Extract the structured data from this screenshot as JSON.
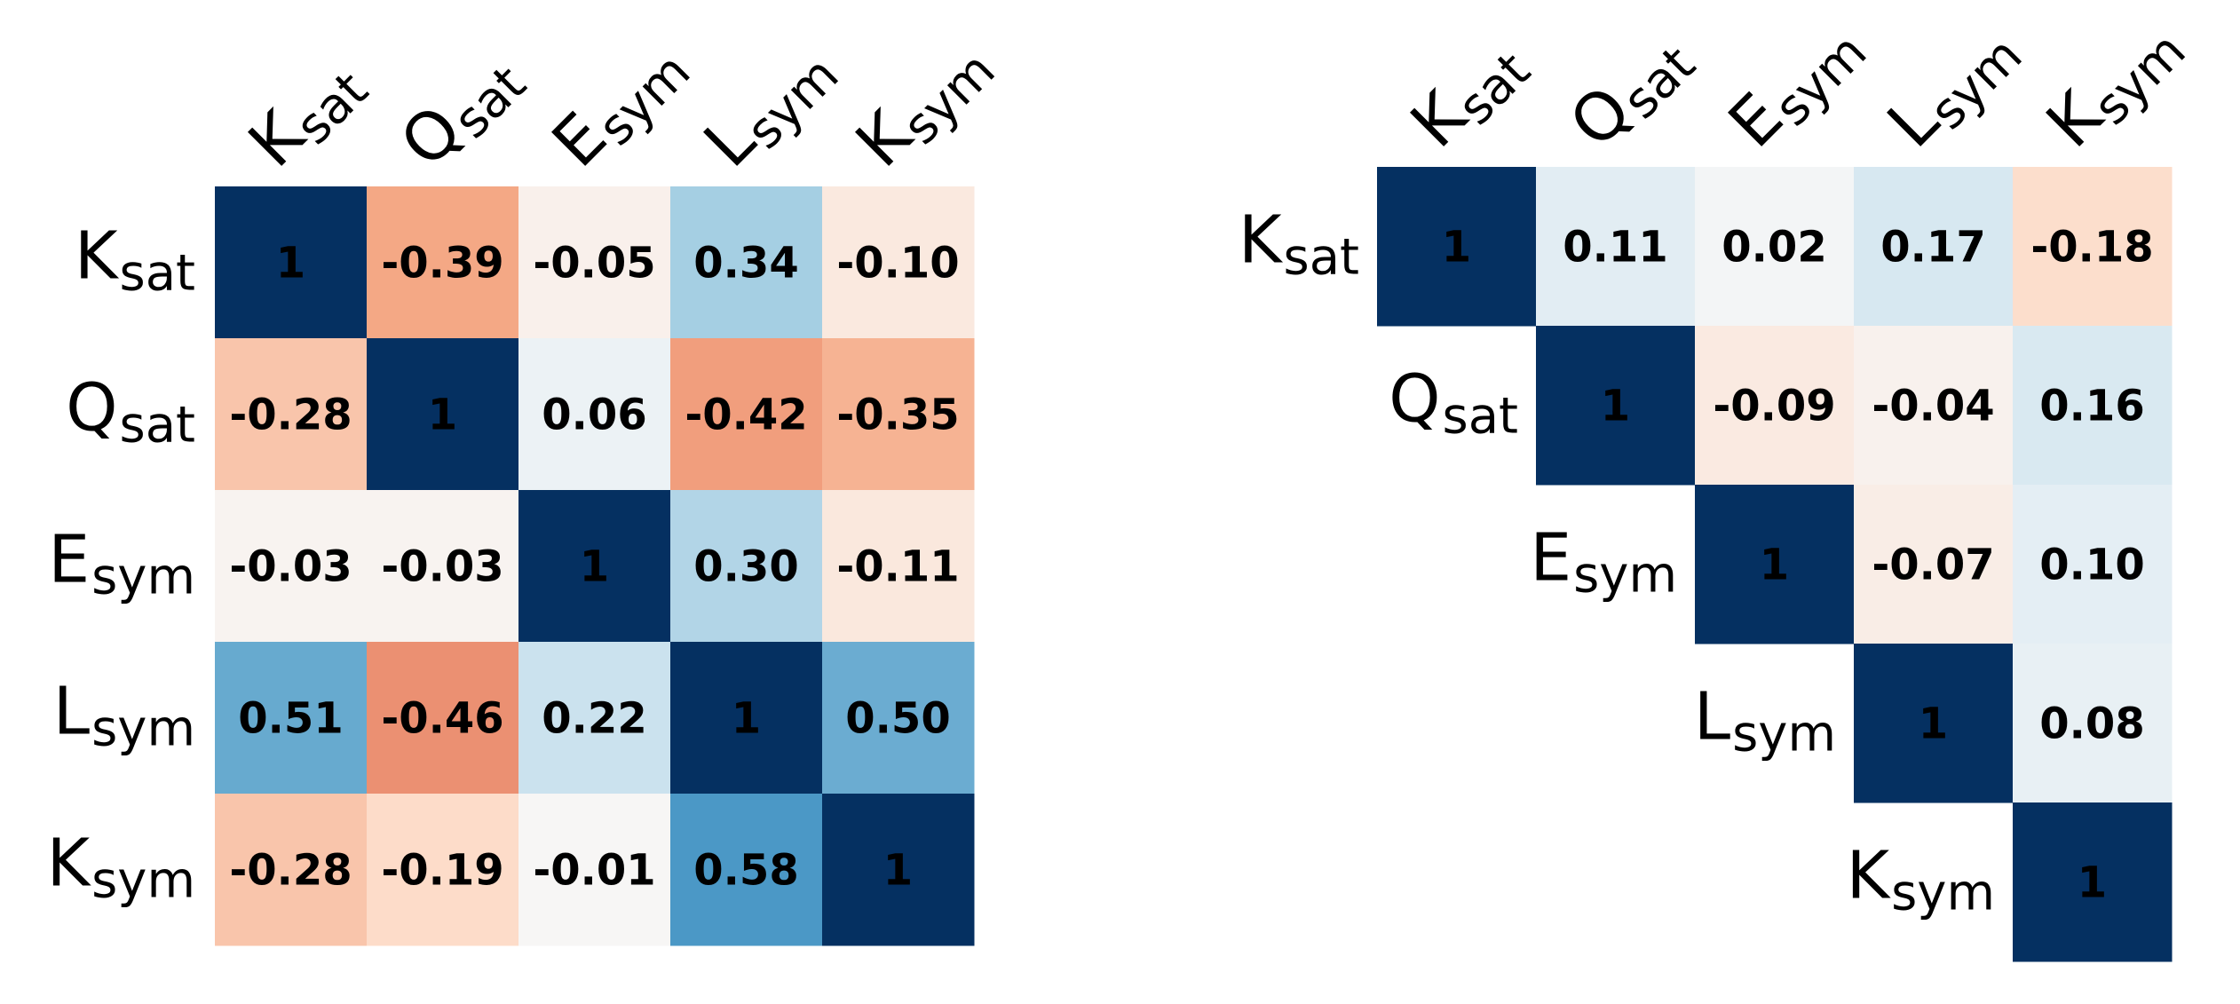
{
  "chart_data": [
    {
      "type": "heatmap",
      "labels": [
        {
          "main": "K",
          "sub": "sat"
        },
        {
          "main": "Q",
          "sub": "sat"
        },
        {
          "main": "E",
          "sub": "sym"
        },
        {
          "main": "L",
          "sub": "sym"
        },
        {
          "main": "K",
          "sub": "sym"
        }
      ],
      "matrix": [
        [
          "1",
          "-0.39",
          "-0.05",
          "0.34",
          "-0.10"
        ],
        [
          "-0.28",
          "1",
          "0.06",
          "-0.42",
          "-0.35"
        ],
        [
          "-0.03",
          "-0.03",
          "1",
          "0.30",
          "-0.11"
        ],
        [
          "0.51",
          "-0.46",
          "0.22",
          "1",
          "0.50"
        ],
        [
          "-0.28",
          "-0.19",
          "-0.01",
          "0.58",
          "1"
        ]
      ],
      "colormap": "RdBu",
      "vrange": [
        -1,
        1
      ]
    },
    {
      "type": "heatmap",
      "labels": [
        {
          "main": "K",
          "sub": "sat"
        },
        {
          "main": "Q",
          "sub": "sat"
        },
        {
          "main": "E",
          "sub": "sym"
        },
        {
          "main": "L",
          "sub": "sym"
        },
        {
          "main": "K",
          "sub": "sym"
        }
      ],
      "matrix": [
        [
          "1",
          "0.11",
          "0.02",
          "0.17",
          "-0.18"
        ],
        [
          null,
          "1",
          "-0.09",
          "-0.04",
          "0.16"
        ],
        [
          null,
          null,
          "1",
          "-0.07",
          "0.10"
        ],
        [
          null,
          null,
          null,
          "1",
          "0.08"
        ],
        [
          null,
          null,
          null,
          null,
          "1"
        ]
      ],
      "colormap": "RdBu",
      "vrange": [
        -1,
        1
      ]
    }
  ]
}
